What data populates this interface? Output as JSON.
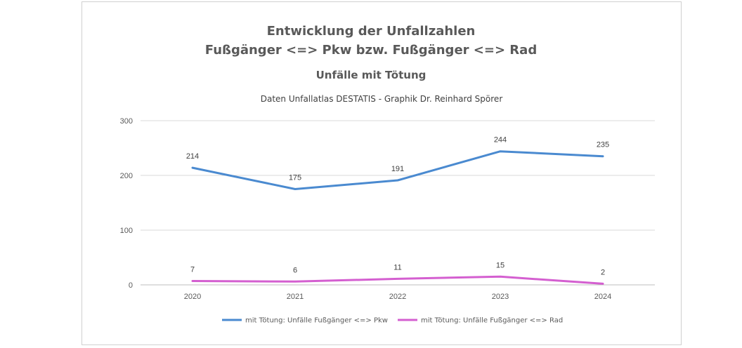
{
  "chart_data": {
    "type": "line",
    "title": "Entwicklung der Unfallzahlen",
    "title_line2": "Fußgänger <=> Pkw bzw. Fußgänger <=> Rad",
    "subtitle": "Unfälle mit Tötung",
    "source_note": "Daten Unfallatlas DESTATIS  - Graphik  Dr. Reinhard Spörer",
    "categories": [
      "2020",
      "2021",
      "2022",
      "2023",
      "2024"
    ],
    "y_ticks": [
      "0",
      "100",
      "200",
      "300"
    ],
    "ylim": [
      0,
      300
    ],
    "grid": true,
    "legend_position": "bottom",
    "series": [
      {
        "name": "mit Tötung: Unfälle Fußgänger <=> Pkw",
        "values": [
          214,
          175,
          191,
          244,
          235
        ],
        "color": "#4a8ad0"
      },
      {
        "name": "mit Tötung: Unfälle Fußgänger <=> Rad",
        "values": [
          7,
          6,
          11,
          15,
          2
        ],
        "color": "#d45fd0"
      }
    ]
  }
}
